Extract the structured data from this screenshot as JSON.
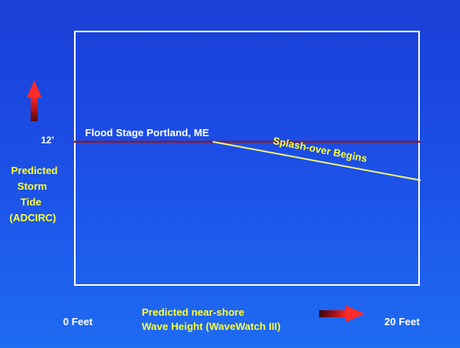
{
  "y_axis": {
    "level_label": "12’",
    "title_lines": [
      "Predicted",
      "Storm",
      "Tide",
      "(ADCIRC)"
    ]
  },
  "x_axis": {
    "start_label": "0 Feet",
    "end_label": "20 Feet",
    "title_lines": [
      "Predicted near-shore",
      "Wave Height (WaveWatch III)"
    ]
  },
  "annotations": {
    "flood_stage": "Flood Stage Portland, ME",
    "splash_over": "Splash-over Begins"
  },
  "colors": {
    "background_top": "#1a3fd6",
    "background_bottom": "#1f6bf2",
    "flood_line": "#8b1a2b",
    "splash_line": "#f2f27a",
    "label_yellow": "#ffff33",
    "arrow_red": "#e8202a"
  }
}
